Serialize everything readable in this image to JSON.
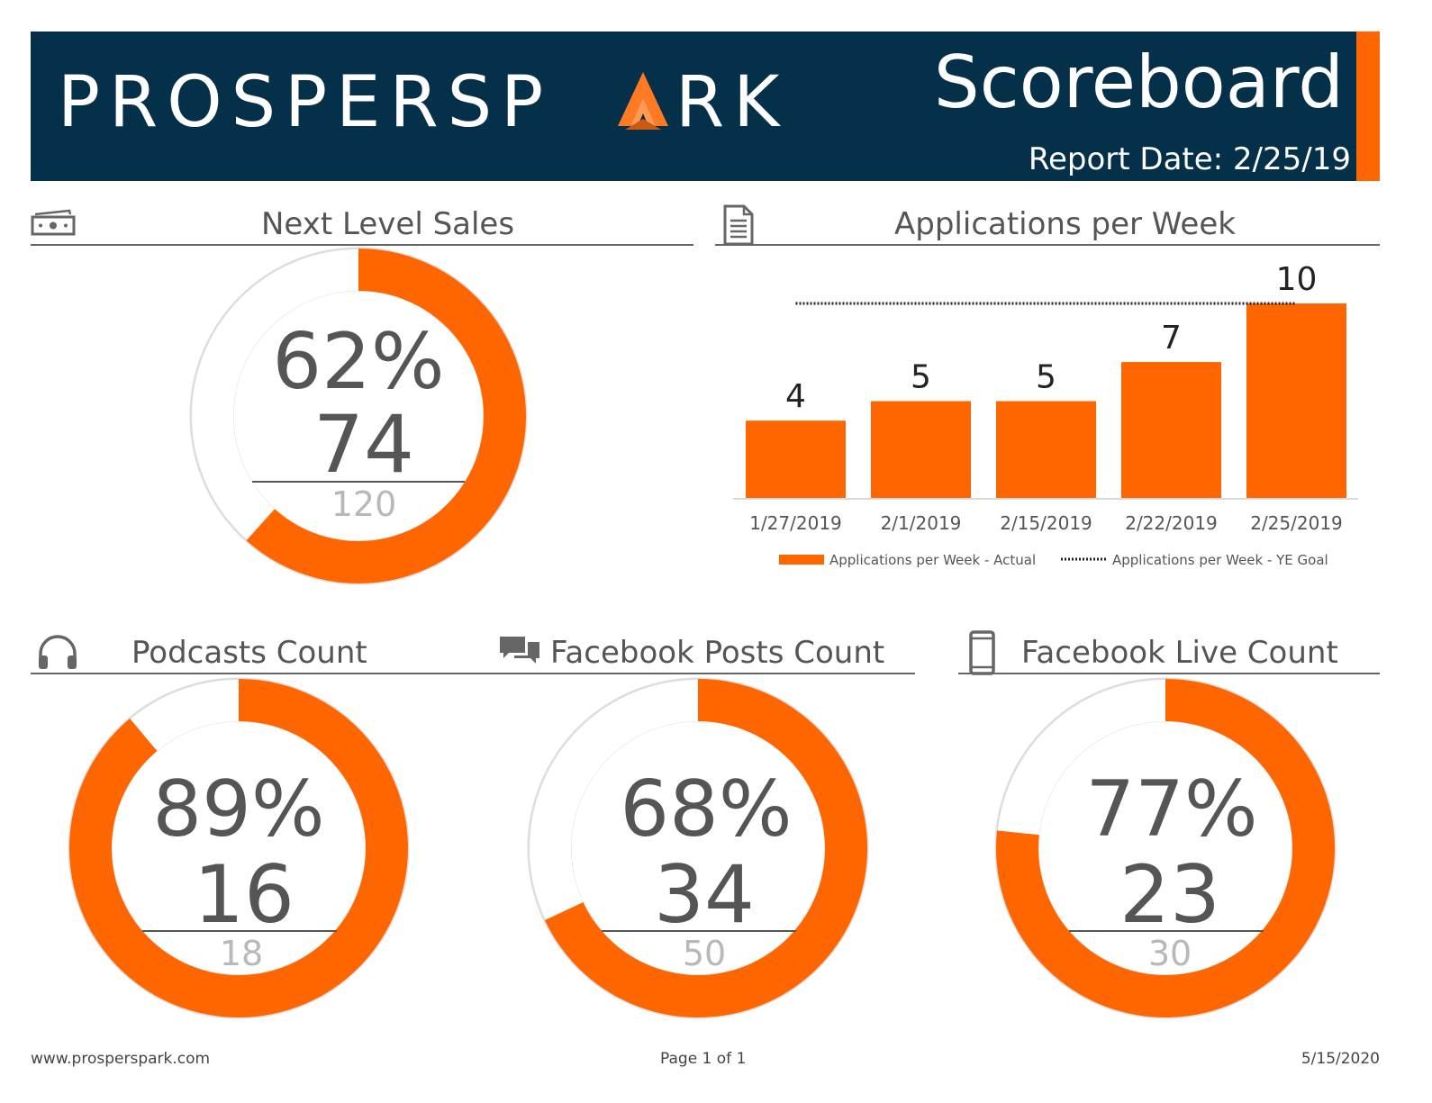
{
  "header": {
    "brand_left": "PROSPERSP",
    "brand_right": "RK",
    "title": "Scoreboard",
    "report_date": "Report Date: 2/25/19"
  },
  "sections": {
    "sales": {
      "title": "Next Level Sales",
      "icon": "money-icon"
    },
    "applications": {
      "title": "Applications per Week",
      "icon": "document-icon"
    },
    "podcasts": {
      "title": "Podcasts Count",
      "icon": "headphones-icon"
    },
    "fb_posts": {
      "title": "Facebook Posts Count",
      "icon": "chat-bubbles-icon"
    },
    "fb_live": {
      "title": "Facebook Live Count",
      "icon": "phone-icon"
    }
  },
  "colors": {
    "accent": "#ff6600",
    "navy": "#04304a",
    "track": "#dddddd"
  },
  "chart_data": [
    {
      "type": "donut",
      "id": "sales",
      "percent_label": "62%",
      "value": 74,
      "goal": 120
    },
    {
      "type": "bar",
      "id": "applications",
      "categories": [
        "1/27/2019",
        "2/1/2019",
        "2/15/2019",
        "2/22/2019",
        "2/25/2019"
      ],
      "series": [
        {
          "name": "Applications per Week - Actual",
          "values": [
            4,
            5,
            5,
            7,
            10
          ],
          "style": "bar"
        },
        {
          "name": "Applications per Week - YE Goal",
          "values": [
            10,
            10,
            10,
            10,
            10
          ],
          "style": "dotted-line"
        }
      ],
      "ylim": [
        0,
        10
      ]
    },
    {
      "type": "donut",
      "id": "podcasts",
      "percent_label": "89%",
      "value": 16,
      "goal": 18
    },
    {
      "type": "donut",
      "id": "fb_posts",
      "percent_label": "68%",
      "value": 34,
      "goal": 50
    },
    {
      "type": "donut",
      "id": "fb_live",
      "percent_label": "77%",
      "value": 23,
      "goal": 30
    }
  ],
  "footer": {
    "website": "www.prosperspark.com",
    "page": "Page 1 of 1",
    "date": "5/15/2020"
  }
}
